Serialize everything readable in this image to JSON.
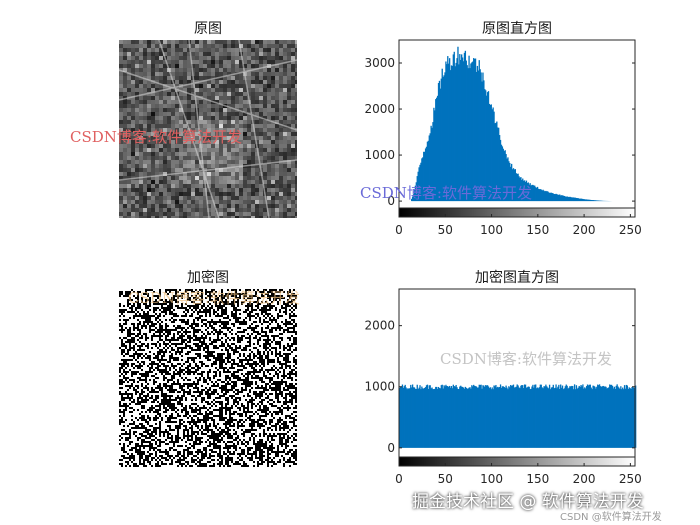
{
  "chart_data": [
    {
      "type": "image",
      "title": "原图",
      "content": "grayscale aerial photo"
    },
    {
      "type": "bar",
      "title": "原图直方图",
      "xlabel": "",
      "ylabel": "",
      "xlim": [
        0,
        255
      ],
      "ylim": [
        -150,
        3500
      ],
      "xticks": [
        "0",
        "50",
        "100",
        "150",
        "200",
        "250"
      ],
      "yticks": [
        "0",
        "1000",
        "2000",
        "3000"
      ],
      "color": "#0072BD",
      "series_profile": [
        {
          "x": 0,
          "y": 0
        },
        {
          "x": 12,
          "y": 0
        },
        {
          "x": 15,
          "y": 150
        },
        {
          "x": 18,
          "y": 400
        },
        {
          "x": 20,
          "y": 650
        },
        {
          "x": 25,
          "y": 1000
        },
        {
          "x": 30,
          "y": 1300
        },
        {
          "x": 35,
          "y": 1700
        },
        {
          "x": 40,
          "y": 2200
        },
        {
          "x": 45,
          "y": 2700
        },
        {
          "x": 50,
          "y": 2950
        },
        {
          "x": 55,
          "y": 3050
        },
        {
          "x": 60,
          "y": 3150
        },
        {
          "x": 65,
          "y": 3200
        },
        {
          "x": 70,
          "y": 3150
        },
        {
          "x": 75,
          "y": 3050
        },
        {
          "x": 80,
          "y": 3000
        },
        {
          "x": 85,
          "y": 2950
        },
        {
          "x": 90,
          "y": 2700
        },
        {
          "x": 95,
          "y": 2400
        },
        {
          "x": 100,
          "y": 2000
        },
        {
          "x": 105,
          "y": 1650
        },
        {
          "x": 110,
          "y": 1300
        },
        {
          "x": 115,
          "y": 1000
        },
        {
          "x": 120,
          "y": 800
        },
        {
          "x": 125,
          "y": 650
        },
        {
          "x": 130,
          "y": 520
        },
        {
          "x": 140,
          "y": 380
        },
        {
          "x": 150,
          "y": 280
        },
        {
          "x": 160,
          "y": 200
        },
        {
          "x": 170,
          "y": 150
        },
        {
          "x": 180,
          "y": 100
        },
        {
          "x": 190,
          "y": 70
        },
        {
          "x": 200,
          "y": 40
        },
        {
          "x": 210,
          "y": 20
        },
        {
          "x": 220,
          "y": 5
        },
        {
          "x": 230,
          "y": 0
        },
        {
          "x": 255,
          "y": 0
        }
      ]
    },
    {
      "type": "image",
      "title": "加密图",
      "content": "random black and white noise"
    },
    {
      "type": "bar",
      "title": "加密图直方图",
      "xlabel": "",
      "ylabel": "",
      "xlim": [
        0,
        255
      ],
      "ylim": [
        -150,
        2600
      ],
      "xticks": [
        "0",
        "50",
        "100",
        "150",
        "200",
        "250"
      ],
      "yticks": [
        "0",
        "1000",
        "2000"
      ],
      "color": "#0072BD",
      "uniform_level": 1000,
      "jitter": 40
    }
  ],
  "watermarks": {
    "w1": "CSDN博客:软件算法开发",
    "w2": "CSDN博客:软件算法开发",
    "w3": "CSDN博客:软件算法开发",
    "w4": "CSDN博客:软件算法开发"
  },
  "footer": {
    "main": "掘金技术社区 @ 软件算法开发",
    "sub": "CSDN @软件算法开发"
  },
  "colors": {
    "bar": "#0072BD",
    "watermark_red": "#e06060",
    "watermark_blue": "#6060d0",
    "watermark_gray": "#c8c8c8",
    "watermark_yellow": "#f0c080"
  }
}
